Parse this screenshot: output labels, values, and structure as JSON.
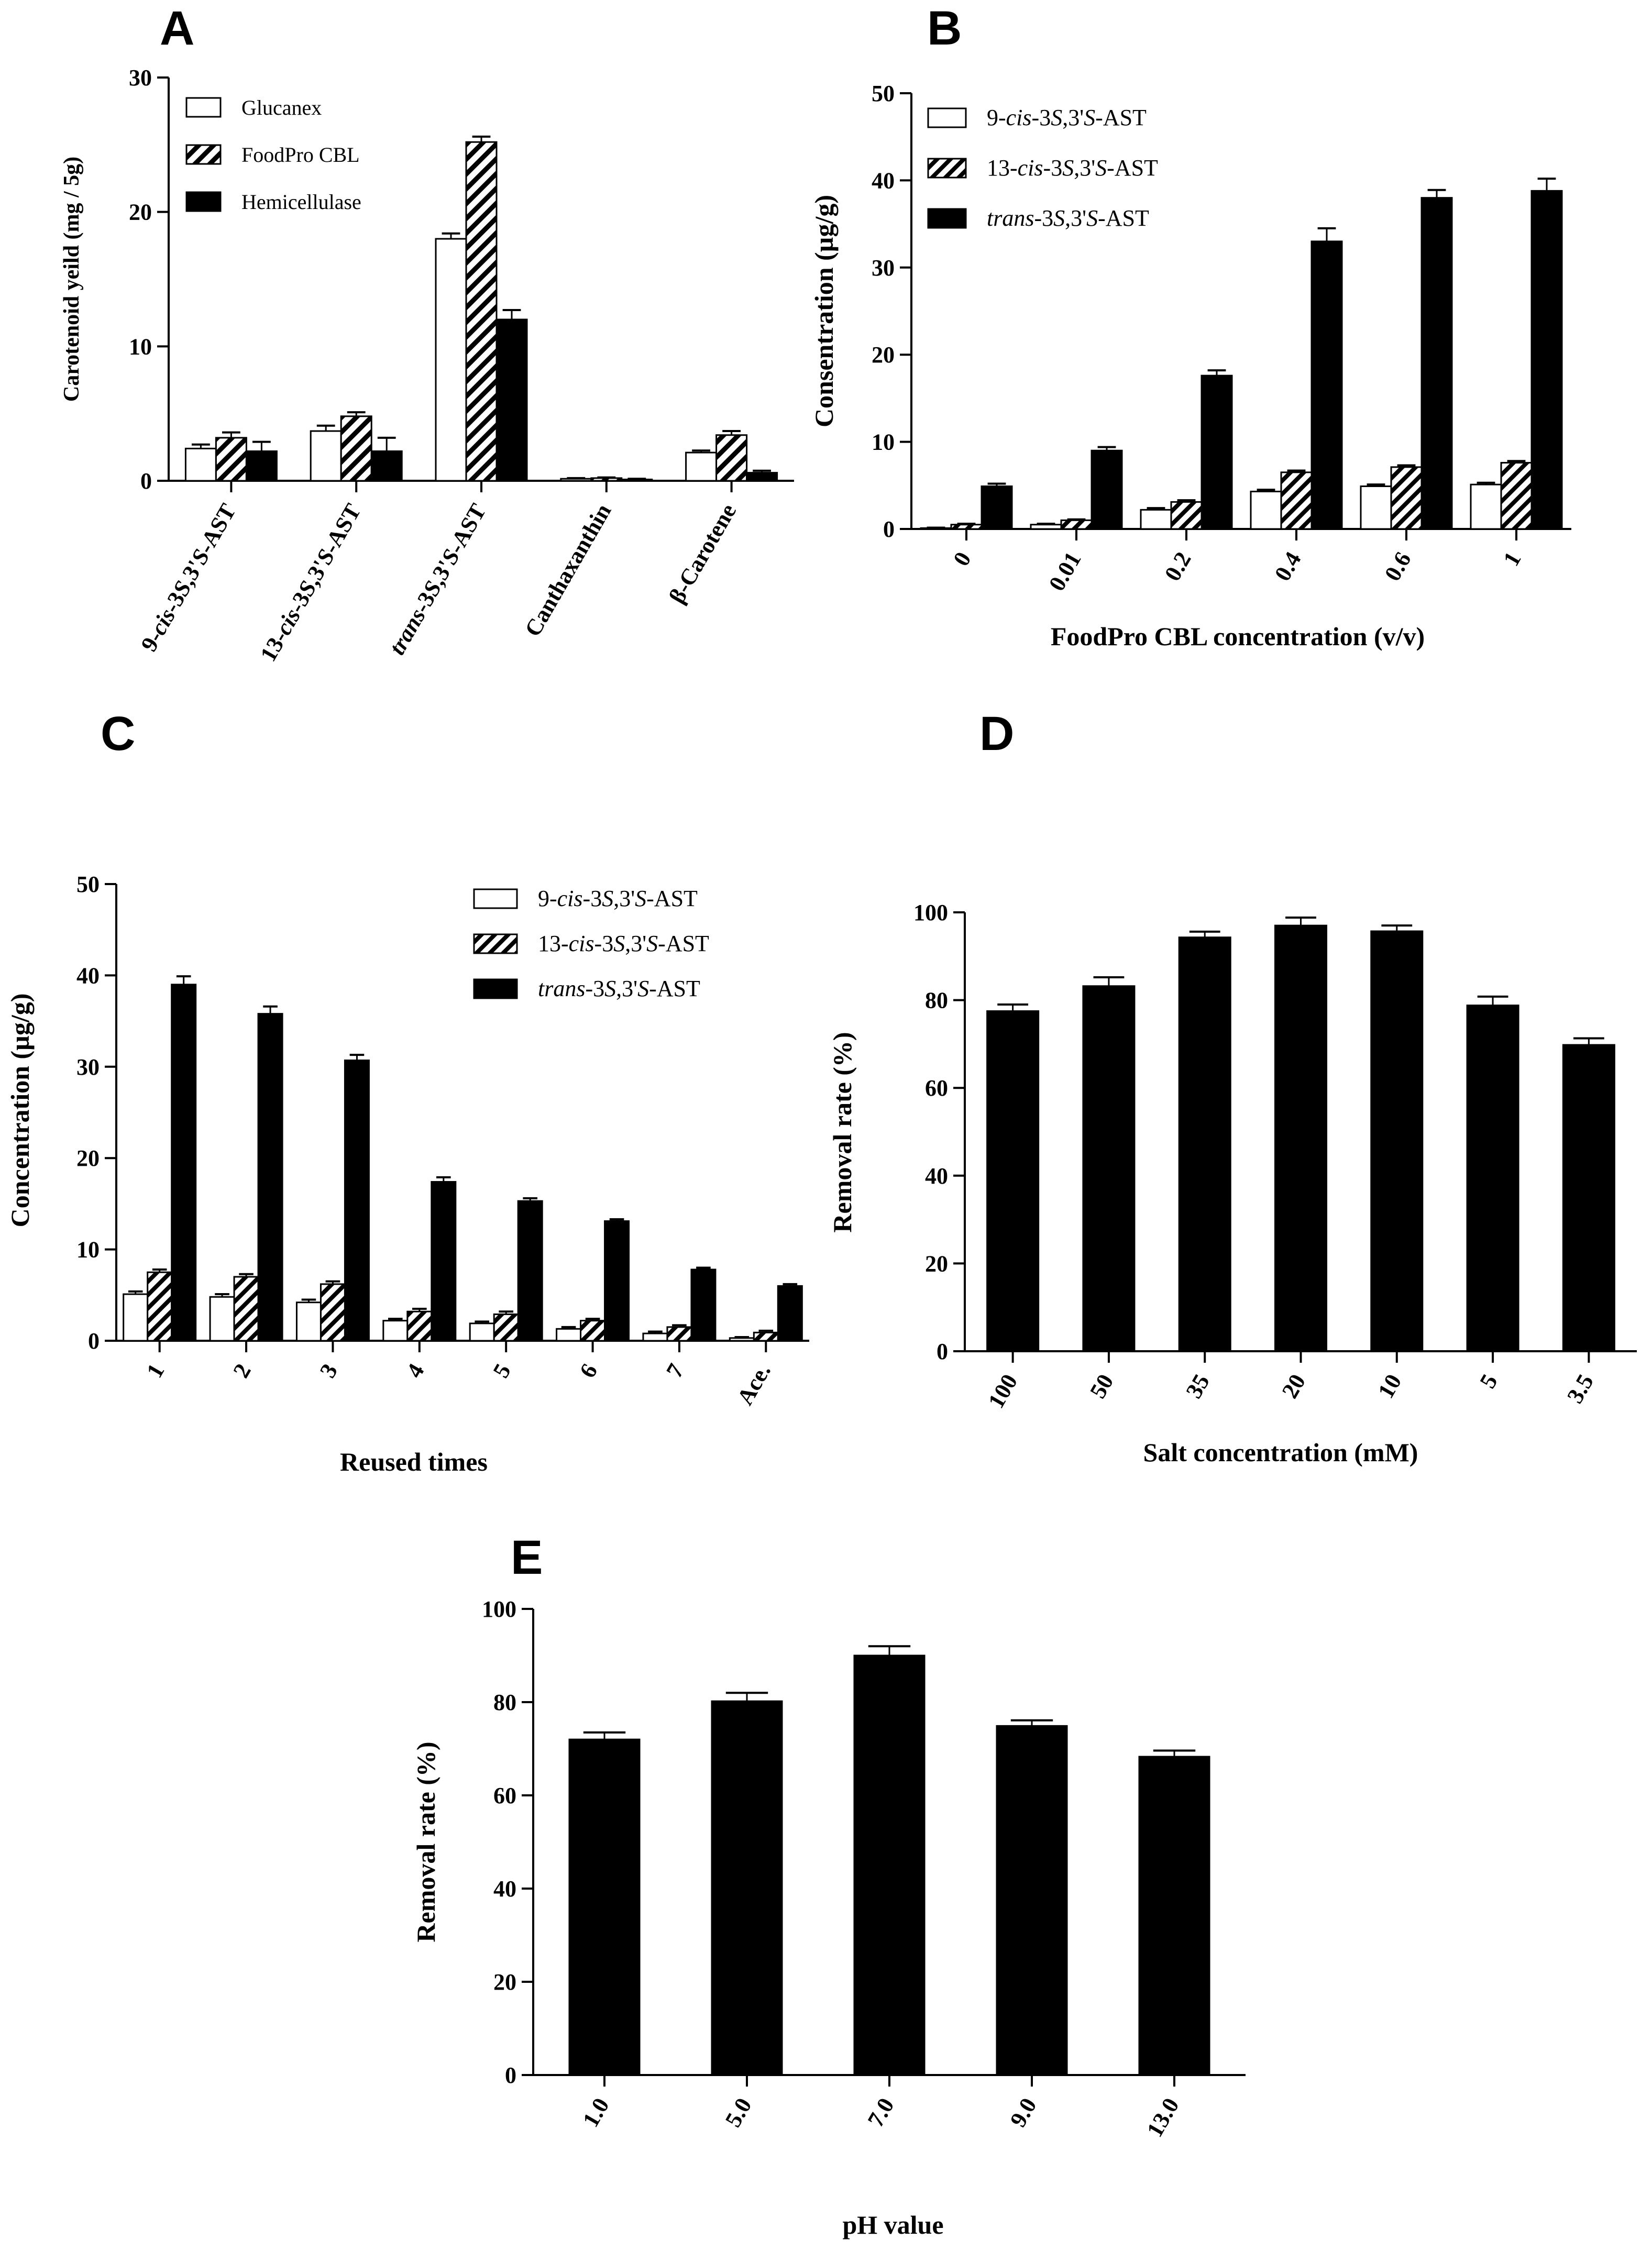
{
  "chart_data": [
    {
      "id": "A",
      "type": "bar",
      "panel_label": "A",
      "ylabel": "Carotenoid yeild (mg / 5g)",
      "xlabel": "",
      "ylim": [
        0,
        30
      ],
      "yticks": [
        0,
        10,
        20,
        30
      ],
      "categories": [
        "9-cis-3S,3'S-AST",
        "13-cis-3S,3'S-AST",
        "trans-3S,3'S-AST",
        "Canthaxanthin",
        "β-Carotene"
      ],
      "series": [
        {
          "name": "Glucanex",
          "pattern": "white",
          "values": [
            2.4,
            3.7,
            18.0,
            0.15,
            2.1
          ],
          "errors": [
            0.3,
            0.4,
            0.4,
            0.05,
            0.15
          ]
        },
        {
          "name": "FoodPro CBL",
          "pattern": "hatch",
          "values": [
            3.2,
            4.8,
            25.2,
            0.2,
            3.4
          ],
          "errors": [
            0.4,
            0.3,
            0.4,
            0.05,
            0.3
          ]
        },
        {
          "name": "Hemicellulase",
          "pattern": "black",
          "values": [
            2.2,
            2.2,
            12.0,
            0.1,
            0.6
          ],
          "errors": [
            0.7,
            1.0,
            0.7,
            0.05,
            0.15
          ]
        }
      ]
    },
    {
      "id": "B",
      "type": "bar",
      "panel_label": "B",
      "ylabel": "Consentration (µg/g)",
      "xlabel": "FoodPro CBL concentration (v/v)",
      "ylim": [
        0,
        50
      ],
      "yticks": [
        0,
        10,
        20,
        30,
        40,
        50
      ],
      "categories": [
        "0",
        "0.01",
        "0.2",
        "0.4",
        "0.6",
        "1"
      ],
      "series": [
        {
          "name": "9-cis-3S,3'S-AST",
          "pattern": "white",
          "values": [
            0.1,
            0.5,
            2.2,
            4.3,
            4.9,
            5.1
          ],
          "errors": [
            0.05,
            0.1,
            0.2,
            0.2,
            0.2,
            0.2
          ]
        },
        {
          "name": "13-cis-3S,3'S-AST",
          "pattern": "hatch",
          "values": [
            0.5,
            1.0,
            3.1,
            6.5,
            7.1,
            7.6
          ],
          "errors": [
            0.1,
            0.1,
            0.2,
            0.2,
            0.2,
            0.2
          ]
        },
        {
          "name": "trans-3S,3'S-AST",
          "pattern": "black",
          "values": [
            4.9,
            9.0,
            17.6,
            33.0,
            38.0,
            38.8
          ],
          "errors": [
            0.3,
            0.4,
            0.6,
            1.5,
            0.9,
            1.4
          ]
        }
      ]
    },
    {
      "id": "C",
      "type": "bar",
      "panel_label": "C",
      "ylabel": "Concentration (µg/g)",
      "xlabel": "Reused times",
      "ylim": [
        0,
        50
      ],
      "yticks": [
        0,
        10,
        20,
        30,
        40,
        50
      ],
      "categories": [
        "1",
        "2",
        "3",
        "4",
        "5",
        "6",
        "7",
        "Ace."
      ],
      "series": [
        {
          "name": "9-cis-3S,3'S-AST",
          "pattern": "white",
          "values": [
            5.1,
            4.8,
            4.2,
            2.2,
            1.9,
            1.3,
            0.8,
            0.3
          ],
          "errors": [
            0.3,
            0.3,
            0.3,
            0.2,
            0.2,
            0.2,
            0.2,
            0.1
          ]
        },
        {
          "name": "13-cis-3S,3'S-AST",
          "pattern": "hatch",
          "values": [
            7.5,
            7.0,
            6.2,
            3.2,
            2.9,
            2.2,
            1.5,
            0.9
          ],
          "errors": [
            0.3,
            0.3,
            0.3,
            0.3,
            0.3,
            0.2,
            0.2,
            0.2
          ]
        },
        {
          "name": "trans-3S,3'S-AST",
          "pattern": "black",
          "values": [
            39.0,
            35.8,
            30.7,
            17.4,
            15.3,
            13.1,
            7.8,
            6.0
          ],
          "errors": [
            0.9,
            0.8,
            0.6,
            0.5,
            0.3,
            0.2,
            0.2,
            0.2
          ]
        }
      ]
    },
    {
      "id": "D",
      "type": "bar",
      "panel_label": "D",
      "ylabel": "Removal rate (%)",
      "xlabel": "Salt concentration (mM)",
      "ylim": [
        0,
        100
      ],
      "yticks": [
        0,
        20,
        40,
        60,
        80,
        100
      ],
      "categories": [
        "100",
        "50",
        "35",
        "20",
        "10",
        "5",
        "3.5"
      ],
      "series": [
        {
          "name": "Removal rate",
          "pattern": "black",
          "values": [
            77.5,
            83.2,
            94.3,
            97.0,
            95.7,
            78.8,
            69.8
          ],
          "errors": [
            1.5,
            2.0,
            1.3,
            1.8,
            1.3,
            2.0,
            1.5
          ]
        }
      ]
    },
    {
      "id": "E",
      "type": "bar",
      "panel_label": "E",
      "ylabel": "Removal rate (%)",
      "xlabel": "pH value",
      "ylim": [
        0,
        100
      ],
      "yticks": [
        0,
        20,
        40,
        60,
        80,
        100
      ],
      "categories": [
        "1.0",
        "5.0",
        "7.0",
        "9.0",
        "13.0"
      ],
      "series": [
        {
          "name": "Removal rate",
          "pattern": "black",
          "values": [
            72.0,
            80.2,
            90.0,
            74.9,
            68.3
          ],
          "errors": [
            1.5,
            1.8,
            2.0,
            1.2,
            1.3
          ]
        }
      ]
    }
  ]
}
